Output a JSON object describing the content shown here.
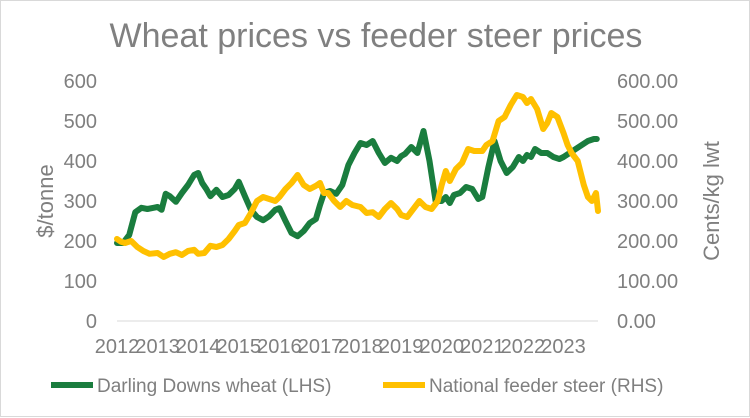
{
  "chart_data": {
    "type": "line",
    "title": "Wheat prices vs feeder steer prices",
    "ylabel": "$/tonne",
    "y2label": "Cents/kg lwt",
    "xlabel": "",
    "x_tick_labels": [
      "2012",
      "2013",
      "2014",
      "2015",
      "2016",
      "2017",
      "2018",
      "2019",
      "2020",
      "2021",
      "2022",
      "2023"
    ],
    "x_range": [
      2012,
      2023.85
    ],
    "ylim": [
      0,
      600
    ],
    "y_ticks": [
      "0",
      "100",
      "200",
      "300",
      "400",
      "500",
      "600"
    ],
    "y2lim": [
      0,
      600
    ],
    "y2_ticks": [
      "0.00",
      "100.00",
      "200.00",
      "300.00",
      "400.00",
      "500.00",
      "600.00"
    ],
    "grid": false,
    "legend_position": "bottom",
    "series": [
      {
        "name": "Darling Downs wheat (LHS)",
        "axis": "left",
        "color": "#1a7d3e",
        "x": [
          2012.0,
          2012.15,
          2012.3,
          2012.45,
          2012.6,
          2012.75,
          2012.9,
          2013.0,
          2013.1,
          2013.2,
          2013.3,
          2013.45,
          2013.6,
          2013.75,
          2013.9,
          2014.0,
          2014.1,
          2014.2,
          2014.3,
          2014.45,
          2014.6,
          2014.75,
          2014.9,
          2015.0,
          2015.15,
          2015.3,
          2015.45,
          2015.6,
          2015.75,
          2015.9,
          2016.0,
          2016.15,
          2016.3,
          2016.45,
          2016.6,
          2016.75,
          2016.9,
          2017.0,
          2017.1,
          2017.25,
          2017.4,
          2017.55,
          2017.7,
          2017.85,
          2018.0,
          2018.15,
          2018.3,
          2018.45,
          2018.6,
          2018.75,
          2018.9,
          2019.0,
          2019.1,
          2019.25,
          2019.4,
          2019.55,
          2019.7,
          2019.85,
          2020.0,
          2020.1,
          2020.2,
          2020.3,
          2020.45,
          2020.6,
          2020.75,
          2020.9,
          2021.0,
          2021.15,
          2021.3,
          2021.45,
          2021.6,
          2021.75,
          2021.9,
          2022.0,
          2022.1,
          2022.2,
          2022.3,
          2022.45,
          2022.6,
          2022.75,
          2022.9,
          2023.0,
          2023.15,
          2023.3,
          2023.45,
          2023.6,
          2023.75,
          2023.82
        ],
        "values": [
          195,
          195,
          215,
          272,
          283,
          280,
          283,
          285,
          278,
          318,
          312,
          298,
          320,
          340,
          365,
          370,
          345,
          330,
          312,
          328,
          310,
          315,
          330,
          348,
          312,
          278,
          260,
          252,
          262,
          278,
          282,
          250,
          220,
          212,
          225,
          245,
          255,
          290,
          320,
          325,
          318,
          340,
          390,
          420,
          445,
          440,
          450,
          420,
          395,
          408,
          400,
          412,
          418,
          435,
          420,
          475,
          400,
          300,
          300,
          310,
          295,
          315,
          320,
          335,
          330,
          305,
          310,
          385,
          450,
          400,
          370,
          385,
          410,
          400,
          415,
          410,
          430,
          420,
          420,
          410,
          405,
          410,
          420,
          430,
          440,
          450,
          455,
          455
        ]
      },
      {
        "name": "National feeder steer (RHS)",
        "axis": "right",
        "color": "#ffc000",
        "x": [
          2012.0,
          2012.1,
          2012.2,
          2012.35,
          2012.5,
          2012.65,
          2012.8,
          2013.0,
          2013.15,
          2013.3,
          2013.45,
          2013.6,
          2013.75,
          2013.9,
          2014.0,
          2014.15,
          2014.3,
          2014.45,
          2014.6,
          2014.75,
          2014.9,
          2015.0,
          2015.15,
          2015.3,
          2015.45,
          2015.6,
          2015.75,
          2015.9,
          2016.0,
          2016.15,
          2016.3,
          2016.45,
          2016.6,
          2016.75,
          2016.9,
          2017.0,
          2017.1,
          2017.2,
          2017.35,
          2017.5,
          2017.65,
          2017.8,
          2018.0,
          2018.15,
          2018.3,
          2018.45,
          2018.6,
          2018.75,
          2018.9,
          2019.0,
          2019.15,
          2019.3,
          2019.45,
          2019.6,
          2019.75,
          2019.9,
          2020.0,
          2020.1,
          2020.2,
          2020.35,
          2020.5,
          2020.65,
          2020.8,
          2021.0,
          2021.1,
          2021.25,
          2021.4,
          2021.55,
          2021.7,
          2021.85,
          2022.0,
          2022.1,
          2022.2,
          2022.35,
          2022.5,
          2022.6,
          2022.7,
          2022.85,
          2023.0,
          2023.1,
          2023.2,
          2023.35,
          2023.5,
          2023.6,
          2023.7,
          2023.8,
          2023.85
        ],
        "values": [
          205,
          198,
          195,
          200,
          185,
          175,
          168,
          170,
          160,
          168,
          172,
          165,
          175,
          178,
          168,
          170,
          188,
          185,
          190,
          205,
          225,
          240,
          245,
          270,
          300,
          310,
          305,
          300,
          310,
          330,
          345,
          365,
          340,
          330,
          338,
          345,
          320,
          320,
          300,
          285,
          300,
          290,
          285,
          270,
          272,
          260,
          280,
          295,
          280,
          265,
          260,
          280,
          300,
          285,
          280,
          300,
          340,
          375,
          350,
          380,
          395,
          430,
          425,
          425,
          440,
          450,
          500,
          510,
          540,
          565,
          560,
          545,
          555,
          530,
          480,
          495,
          520,
          510,
          470,
          440,
          420,
          400,
          340,
          310,
          300,
          320,
          275
        ]
      }
    ]
  }
}
